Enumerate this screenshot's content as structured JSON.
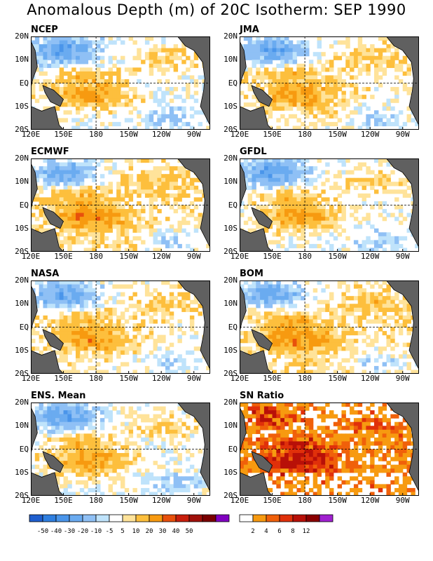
{
  "title": "Anomalous Depth (m) of 20C Isotherm: SEP 1990",
  "axes": {
    "x_ticks": [
      "120E",
      "150E",
      "180",
      "150W",
      "120W",
      "90W"
    ],
    "y_ticks": [
      "20N",
      "10N",
      "EQ",
      "10S",
      "20S"
    ]
  },
  "panels": [
    {
      "id": "ncep",
      "label": "NCEP",
      "field": "anomaly"
    },
    {
      "id": "jma",
      "label": "JMA",
      "field": "anomaly"
    },
    {
      "id": "ecmwf",
      "label": "ECMWF",
      "field": "anomaly"
    },
    {
      "id": "gfdl",
      "label": "GFDL",
      "field": "anomaly"
    },
    {
      "id": "nasa",
      "label": "NASA",
      "field": "anomaly"
    },
    {
      "id": "bom",
      "label": "BOM",
      "field": "anomaly"
    },
    {
      "id": "ens",
      "label": "ENS. Mean",
      "field": "anomaly"
    },
    {
      "id": "sn",
      "label": "SN Ratio",
      "field": "ratio"
    }
  ],
  "colorbar_anomaly": {
    "colors": [
      "#1f5fcf",
      "#2f7fe0",
      "#4a95ea",
      "#6aabf0",
      "#8fc0f5",
      "#bfe3fb",
      "#ffffff",
      "#ffe39a",
      "#fdbf3d",
      "#f79a10",
      "#e8500c",
      "#c81e0c",
      "#a0100a",
      "#7a0000",
      "#8000c0"
    ],
    "labels": [
      "-50",
      "-40",
      "-30",
      "-20",
      "-10",
      "-5",
      "5",
      "10",
      "20",
      "30",
      "40",
      "50"
    ]
  },
  "colorbar_ratio": {
    "colors": [
      "#ffffff",
      "#f79a10",
      "#f0600a",
      "#e0300a",
      "#b81008",
      "#8a0000",
      "#a020d0"
    ],
    "labels": [
      "2",
      "4",
      "6",
      "8",
      "12"
    ]
  },
  "colors": {
    "land": "#606060",
    "coast": "#000000"
  }
}
